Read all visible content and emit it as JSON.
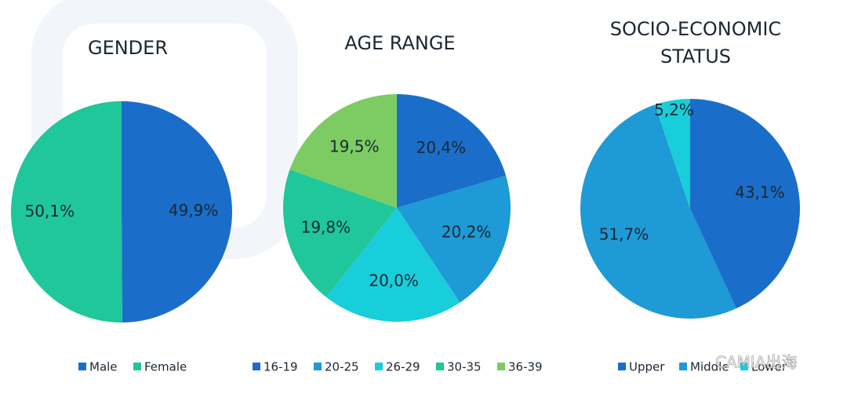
{
  "chart_data": [
    {
      "type": "pie",
      "title": [
        "GENDER"
      ],
      "categories": [
        "Male",
        "Female"
      ],
      "values": [
        49.9,
        50.1
      ],
      "value_labels": [
        "49,9%",
        "50,1%"
      ],
      "colors": [
        "#1a6ec9",
        "#1fc79a"
      ]
    },
    {
      "type": "pie",
      "title": [
        "AGE RANGE"
      ],
      "categories": [
        "16-19",
        "20-25",
        "26-29",
        "30-35",
        "36-39"
      ],
      "values": [
        20.4,
        20.2,
        20.0,
        19.8,
        19.5
      ],
      "value_labels": [
        "20,4%",
        "20,2%",
        "20,0%",
        "19,8%",
        "19,5%"
      ],
      "colors": [
        "#1a6ec9",
        "#1e9ad6",
        "#19cedb",
        "#1fc79a",
        "#7ccc63"
      ]
    },
    {
      "type": "pie",
      "title": [
        "SOCIO-ECONOMIC",
        "STATUS"
      ],
      "categories": [
        "Upper",
        "Middle",
        "Lower"
      ],
      "values": [
        43.1,
        51.7,
        5.2
      ],
      "value_labels": [
        "43,1%",
        "51,7%",
        "5,2%"
      ],
      "colors": [
        "#1a6ec9",
        "#1e9ad6",
        "#19cedb"
      ]
    }
  ],
  "watermark": "CAMIA出海"
}
